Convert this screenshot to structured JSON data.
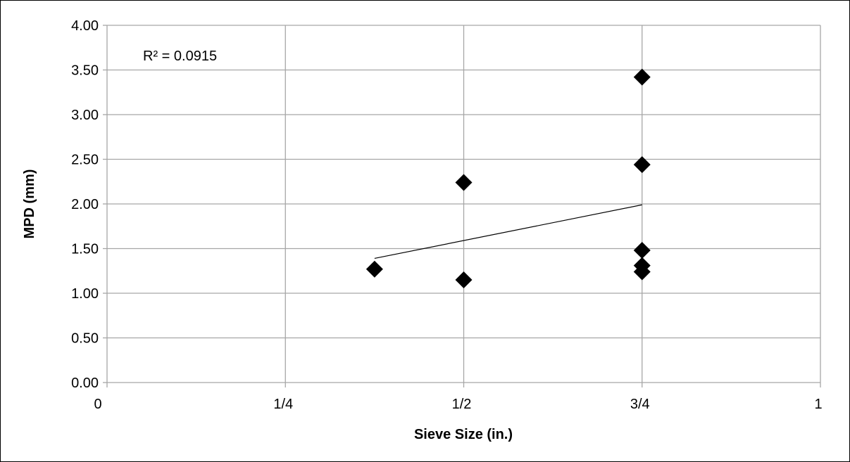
{
  "chart_data": {
    "type": "scatter",
    "xlabel": "Sieve Size (in.)",
    "ylabel": "MPD (mm)",
    "xlim": [
      0,
      1
    ],
    "ylim": [
      0,
      4
    ],
    "x_ticks": [
      {
        "value": 0,
        "label": "0"
      },
      {
        "value": 0.25,
        "label": "1/4"
      },
      {
        "value": 0.5,
        "label": "1/2"
      },
      {
        "value": 0.75,
        "label": "3/4"
      },
      {
        "value": 1,
        "label": "1"
      }
    ],
    "y_ticks": [
      {
        "value": 0,
        "label": "0.00"
      },
      {
        "value": 0.5,
        "label": "0.50"
      },
      {
        "value": 1,
        "label": "1.00"
      },
      {
        "value": 1.5,
        "label": "1.50"
      },
      {
        "value": 2,
        "label": "2.00"
      },
      {
        "value": 2.5,
        "label": "2.50"
      },
      {
        "value": 3,
        "label": "3.00"
      },
      {
        "value": 3.5,
        "label": "3.50"
      },
      {
        "value": 4,
        "label": "4.00"
      }
    ],
    "grid": true,
    "marker": "diamond",
    "marker_color": "#000000",
    "gridline_color": "#a6a6a6",
    "points": [
      {
        "x": 0.375,
        "y": 1.27
      },
      {
        "x": 0.5,
        "y": 2.24
      },
      {
        "x": 0.5,
        "y": 1.15
      },
      {
        "x": 0.75,
        "y": 3.42
      },
      {
        "x": 0.75,
        "y": 2.44
      },
      {
        "x": 0.75,
        "y": 1.48
      },
      {
        "x": 0.75,
        "y": 1.31
      },
      {
        "x": 0.75,
        "y": 1.24
      }
    ],
    "trendline": {
      "type": "linear",
      "x": [
        0.375,
        0.75
      ],
      "y": [
        1.39,
        1.99
      ],
      "color": "#000000"
    },
    "annotation": "R² = 0.0915"
  }
}
